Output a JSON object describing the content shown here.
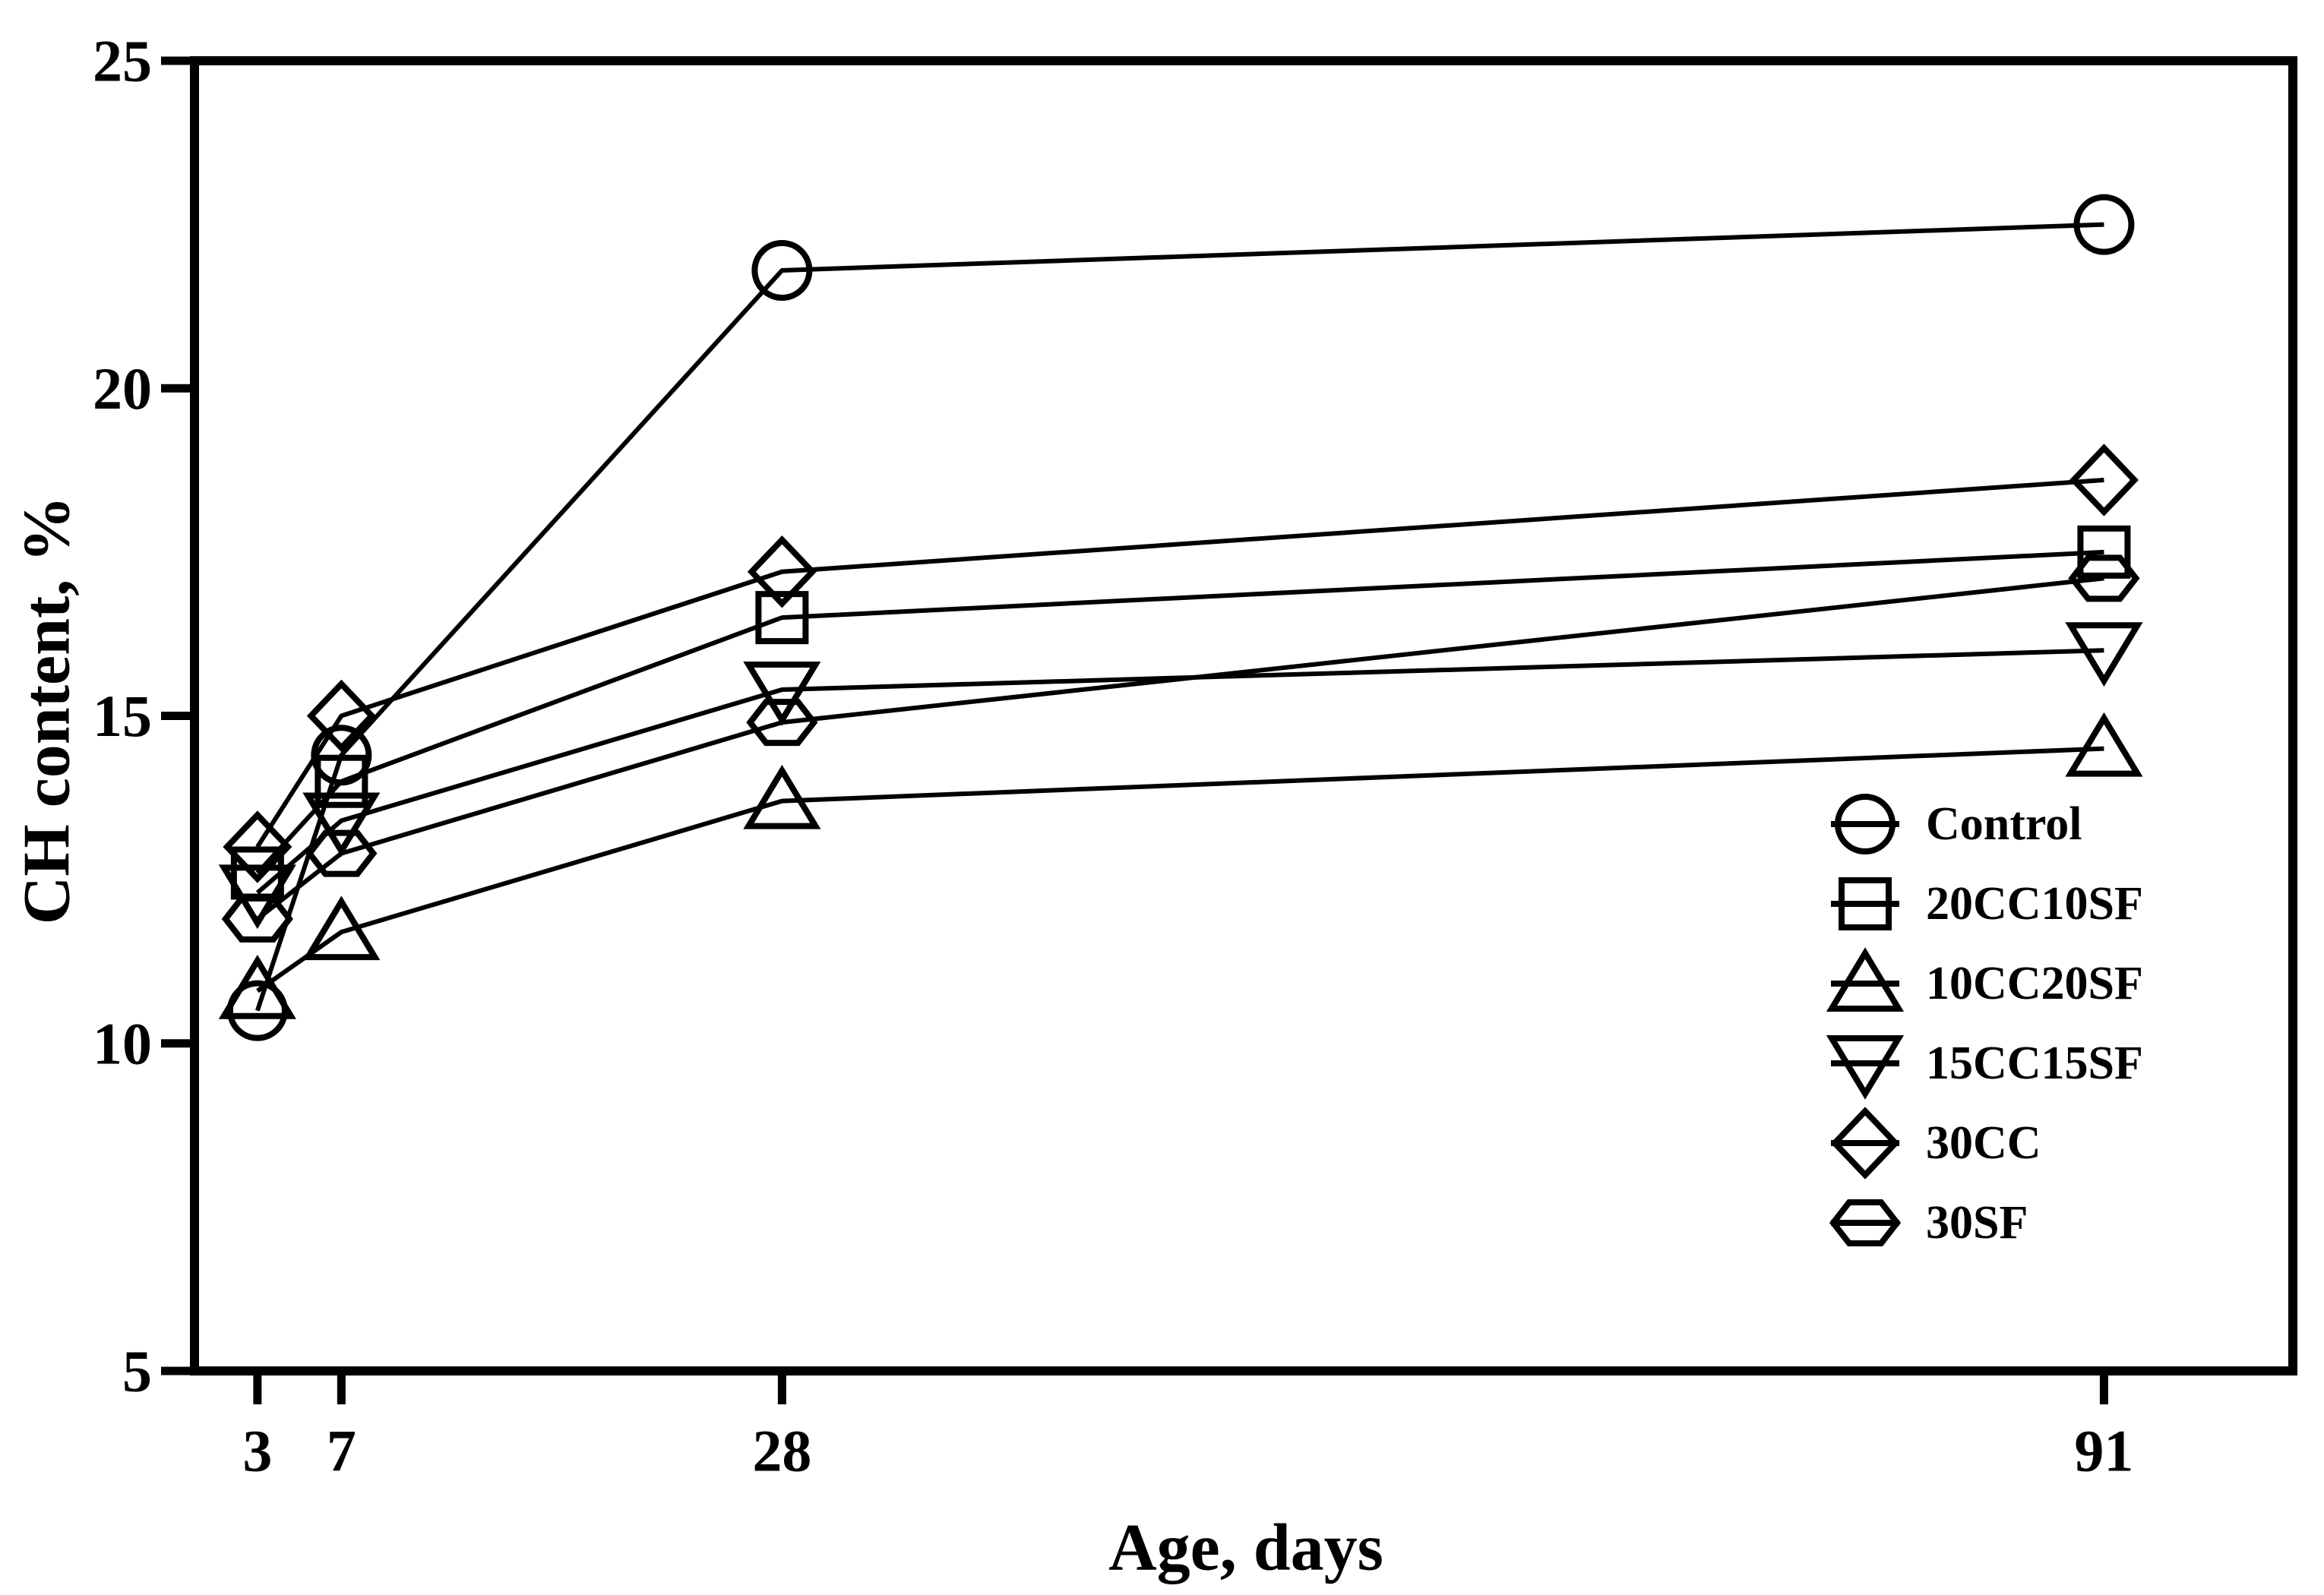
{
  "figure": {
    "background_color": "#ffffff",
    "line_color": "#000000",
    "y_axis_title": "CH content, %",
    "x_axis_title": "Age, days",
    "y_tick_labels": [
      "5",
      "10",
      "15",
      "20",
      "25"
    ],
    "x_tick_labels": [
      "3",
      "7",
      "28",
      "91"
    ]
  },
  "chart_data": {
    "type": "line",
    "title": "",
    "xlabel": "Age, days",
    "ylabel": "CH content, %",
    "x": [
      3,
      7,
      28,
      91
    ],
    "xlim": [
      0,
      100
    ],
    "ylim": [
      5,
      25
    ],
    "x_ticks": [
      3,
      7,
      28,
      91
    ],
    "y_ticks": [
      5,
      10,
      15,
      20,
      25
    ],
    "grid": false,
    "legend_position": "inside-right",
    "marker_style": "open-black-with-horizontal-line",
    "series": [
      {
        "name": "Control",
        "marker": "circle",
        "values": [
          10.5,
          14.4,
          21.8,
          22.5
        ]
      },
      {
        "name": "20CC10SF",
        "marker": "square",
        "values": [
          12.6,
          14.0,
          16.5,
          17.5
        ]
      },
      {
        "name": "10CC20SF",
        "marker": "triangle-up",
        "values": [
          10.8,
          11.7,
          13.7,
          14.5
        ]
      },
      {
        "name": "15CC15SF",
        "marker": "triangle-down",
        "values": [
          12.3,
          13.4,
          15.4,
          16.0
        ]
      },
      {
        "name": "30CC",
        "marker": "diamond",
        "values": [
          13.0,
          15.0,
          17.2,
          18.6
        ]
      },
      {
        "name": "30SF",
        "marker": "hexagon",
        "values": [
          11.9,
          12.9,
          14.9,
          17.1
        ]
      }
    ],
    "colors": {
      "stroke": "#000000",
      "background": "#ffffff"
    }
  }
}
